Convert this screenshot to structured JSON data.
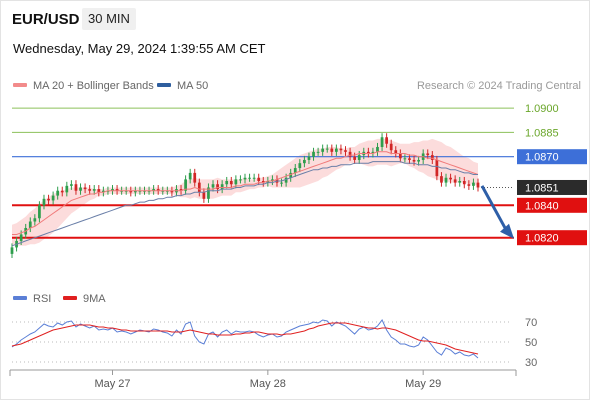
{
  "header": {
    "symbol": "EUR/USD",
    "timeframe": "30 MIN",
    "datetime": "Wednesday, May 29, 2024 1:39:55 AM CET",
    "credit": "Research © 2024 Trading Central"
  },
  "legend_main": [
    {
      "label": "MA 20 + Bollinger Bands",
      "color": "#f28b8b"
    },
    {
      "label": "MA 50",
      "color": "#2e5e9e"
    }
  ],
  "legend_rsi": [
    {
      "label": "RSI",
      "color": "#5b7fd6"
    },
    {
      "label": "9MA",
      "color": "#e02020"
    }
  ],
  "colors": {
    "up_candle": "#2e9e4c",
    "down_candle": "#d12626",
    "band_fill": "#fbd3d3",
    "ma20": "#f07a7a",
    "ma50": "#6a7fa8",
    "resistance": "#3d6fd8",
    "support": "#e01010",
    "target_green": "#8cc15a",
    "arrow": "#2e5fa8"
  },
  "chart_data": {
    "type": "candlestick",
    "title": "EUR/USD",
    "ylim": [
      1.0805,
      1.0905
    ],
    "x_ticks": [
      "May 27",
      "May 28",
      "May 29"
    ],
    "x_tick_bars": [
      22,
      56,
      90
    ],
    "current_price": "1.0851",
    "levels": [
      {
        "value": 1.09,
        "label": "1.0900",
        "kind": "target",
        "style": "thin"
      },
      {
        "value": 1.0885,
        "label": "1.0885",
        "kind": "target",
        "style": "thin"
      },
      {
        "value": 1.087,
        "label": "1.0870",
        "kind": "resistance",
        "style": "line"
      },
      {
        "value": 1.084,
        "label": "1.0840",
        "kind": "support",
        "style": "bold"
      },
      {
        "value": 1.082,
        "label": "1.0820",
        "kind": "support",
        "style": "bold"
      }
    ],
    "forecast_arrow": {
      "from_price": 1.0852,
      "to_price": 1.082
    },
    "close": [
      1.0814,
      1.0818,
      1.0822,
      1.0826,
      1.083,
      1.0832,
      1.084,
      1.0844,
      1.0843,
      1.0846,
      1.0849,
      1.0848,
      1.0852,
      1.0853,
      1.0849,
      1.0851,
      1.085,
      1.0849,
      1.085,
      1.0848,
      1.0849,
      1.0849,
      1.085,
      1.0849,
      1.0849,
      1.0849,
      1.0848,
      1.0849,
      1.0849,
      1.0849,
      1.0849,
      1.085,
      1.0849,
      1.0849,
      1.0849,
      1.0848,
      1.085,
      1.0849,
      1.0856,
      1.086,
      1.0854,
      1.0848,
      1.0844,
      1.0851,
      1.0853,
      1.085,
      1.0853,
      1.0855,
      1.0853,
      1.0856,
      1.0856,
      1.0857,
      1.0857,
      1.0857,
      1.0855,
      1.0854,
      1.0855,
      1.0856,
      1.0854,
      1.0854,
      1.0857,
      1.086,
      1.0863,
      1.0866,
      1.0868,
      1.087,
      1.0873,
      1.0873,
      1.0875,
      1.0875,
      1.0873,
      1.0875,
      1.0874,
      1.0873,
      1.087,
      1.0868,
      1.0871,
      1.0873,
      1.0872,
      1.0873,
      1.0876,
      1.0882,
      1.0878,
      1.0874,
      1.0872,
      1.0869,
      1.0869,
      1.0868,
      1.0867,
      1.0868,
      1.0872,
      1.0871,
      1.0868,
      1.0858,
      1.0854,
      1.0857,
      1.0856,
      1.0854,
      1.0855,
      1.0853,
      1.0852,
      1.0854,
      1.0851
    ],
    "ma20": [
      1.0822,
      1.0822,
      1.0823,
      1.0824,
      1.0826,
      1.0827,
      1.0829,
      1.0831,
      1.0833,
      1.0835,
      1.0837,
      1.0839,
      1.0841,
      1.0843,
      1.0844,
      1.0845,
      1.0846,
      1.0847,
      1.0847,
      1.0848,
      1.0848,
      1.0849,
      1.0849,
      1.0849,
      1.0849,
      1.0849,
      1.0849,
      1.0849,
      1.0849,
      1.0849,
      1.0849,
      1.0849,
      1.0849,
      1.0849,
      1.0849,
      1.0849,
      1.0849,
      1.0849,
      1.085,
      1.085,
      1.0851,
      1.085,
      1.085,
      1.085,
      1.085,
      1.0851,
      1.0851,
      1.0851,
      1.0851,
      1.0852,
      1.0852,
      1.0853,
      1.0853,
      1.0853,
      1.0854,
      1.0854,
      1.0855,
      1.0855,
      1.0856,
      1.0857,
      1.0858,
      1.0859,
      1.086,
      1.0861,
      1.0862,
      1.0863,
      1.0864,
      1.0865,
      1.0866,
      1.0867,
      1.0868,
      1.0869,
      1.0869,
      1.087,
      1.0871,
      1.0871,
      1.0872,
      1.0872,
      1.0872,
      1.0872,
      1.0873,
      1.0873,
      1.0873,
      1.0872,
      1.0872,
      1.0872,
      1.0872,
      1.0871,
      1.0871,
      1.087,
      1.087,
      1.0869,
      1.0869,
      1.0868,
      1.0867,
      1.0866,
      1.0865,
      1.0864,
      1.0863,
      1.0862,
      1.0861,
      1.086,
      1.0859
    ],
    "ma50": [
      1.0815,
      1.0816,
      1.0817,
      1.0818,
      1.0819,
      1.082,
      1.0821,
      1.0822,
      1.0823,
      1.0824,
      1.0825,
      1.0826,
      1.0827,
      1.0828,
      1.0829,
      1.083,
      1.0831,
      1.0832,
      1.0833,
      1.0834,
      1.0835,
      1.0836,
      1.0837,
      1.0838,
      1.0839,
      1.084,
      1.084,
      1.0841,
      1.0842,
      1.0842,
      1.0843,
      1.0843,
      1.0844,
      1.0844,
      1.0845,
      1.0845,
      1.0846,
      1.0846,
      1.0847,
      1.0847,
      1.0848,
      1.0848,
      1.0848,
      1.0849,
      1.0849,
      1.0849,
      1.085,
      1.085,
      1.085,
      1.0851,
      1.0851,
      1.0852,
      1.0852,
      1.0852,
      1.0853,
      1.0853,
      1.0854,
      1.0854,
      1.0855,
      1.0855,
      1.0856,
      1.0857,
      1.0858,
      1.0859,
      1.086,
      1.0861,
      1.0862,
      1.0862,
      1.0863,
      1.0863,
      1.0864,
      1.0864,
      1.0865,
      1.0865,
      1.0865,
      1.0866,
      1.0866,
      1.0866,
      1.0866,
      1.0867,
      1.0867,
      1.0867,
      1.0867,
      1.0867,
      1.0867,
      1.0867,
      1.0866,
      1.0866,
      1.0866,
      1.0865,
      1.0865,
      1.0865,
      1.0864,
      1.0864,
      1.0863,
      1.0863,
      1.0862,
      1.0862,
      1.0861,
      1.086,
      1.086,
      1.0859,
      1.0859
    ],
    "bb_width": [
      0.0006,
      0.0007,
      0.0008,
      0.0009,
      0.001,
      0.0011,
      0.0012,
      0.0012,
      0.0012,
      0.0012,
      0.0011,
      0.001,
      0.0009,
      0.0008,
      0.0007,
      0.0006,
      0.0005,
      0.0004,
      0.0003,
      0.0002,
      0.0002,
      0.0002,
      0.0002,
      0.0002,
      0.0002,
      0.0002,
      0.0002,
      0.0002,
      0.0002,
      0.0002,
      0.0002,
      0.0002,
      0.0002,
      0.0002,
      0.0002,
      0.0002,
      0.0003,
      0.0004,
      0.0005,
      0.0006,
      0.0006,
      0.0006,
      0.0006,
      0.0006,
      0.0006,
      0.0006,
      0.0005,
      0.0005,
      0.0005,
      0.0004,
      0.0004,
      0.0004,
      0.0003,
      0.0003,
      0.0003,
      0.0003,
      0.0003,
      0.0004,
      0.0005,
      0.0006,
      0.0007,
      0.0008,
      0.0009,
      0.001,
      0.001,
      0.001,
      0.001,
      0.001,
      0.0009,
      0.0009,
      0.0008,
      0.0007,
      0.0006,
      0.0005,
      0.0005,
      0.0005,
      0.0006,
      0.0007,
      0.0008,
      0.0008,
      0.0008,
      0.0008,
      0.0008,
      0.0008,
      0.0007,
      0.0006,
      0.0006,
      0.0007,
      0.0008,
      0.0009,
      0.001,
      0.0011,
      0.0012,
      0.0012,
      0.0012,
      0.0011,
      0.0011,
      0.001,
      0.0009,
      0.0008,
      0.0008,
      0.0007,
      0.0007
    ],
    "rsi": {
      "ylim": [
        25,
        80
      ],
      "ticks": [
        70,
        50,
        30
      ],
      "rsi": [
        45,
        48,
        52,
        55,
        58,
        60,
        64,
        68,
        66,
        65,
        69,
        67,
        70,
        71,
        65,
        68,
        66,
        64,
        66,
        62,
        63,
        62,
        64,
        60,
        61,
        60,
        58,
        60,
        62,
        61,
        60,
        63,
        62,
        60,
        59,
        56,
        62,
        58,
        68,
        70,
        56,
        50,
        48,
        58,
        60,
        55,
        60,
        62,
        58,
        61,
        60,
        60,
        61,
        60,
        57,
        55,
        57,
        58,
        55,
        56,
        60,
        62,
        64,
        66,
        67,
        68,
        70,
        69,
        72,
        71,
        66,
        70,
        68,
        66,
        62,
        58,
        63,
        65,
        62,
        63,
        66,
        72,
        62,
        55,
        52,
        48,
        48,
        46,
        45,
        47,
        55,
        52,
        46,
        40,
        37,
        44,
        42,
        38,
        40,
        37,
        36,
        38,
        34
      ],
      "ma9": [
        46,
        47,
        48,
        50,
        52,
        54,
        56,
        58,
        60,
        62,
        63,
        64,
        65,
        66,
        67,
        67,
        67,
        67,
        66,
        65,
        65,
        64,
        64,
        63,
        62,
        62,
        61,
        61,
        61,
        61,
        61,
        61,
        61,
        61,
        61,
        60,
        60,
        60,
        61,
        62,
        61,
        60,
        59,
        58,
        58,
        57,
        57,
        57,
        57,
        58,
        58,
        59,
        59,
        60,
        60,
        59,
        58,
        58,
        58,
        57,
        58,
        58,
        59,
        60,
        61,
        63,
        64,
        66,
        67,
        68,
        69,
        69,
        69,
        69,
        68,
        67,
        66,
        65,
        64,
        64,
        63,
        64,
        64,
        63,
        62,
        60,
        58,
        56,
        54,
        52,
        51,
        51,
        50,
        49,
        48,
        47,
        45,
        43,
        42,
        41,
        40,
        39,
        38
      ]
    }
  }
}
